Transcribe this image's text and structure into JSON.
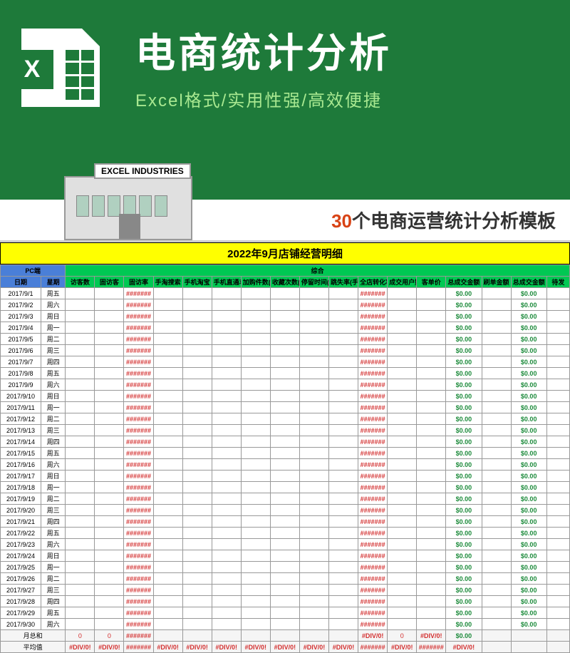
{
  "hero": {
    "icon_letter": "X",
    "title": "电商统计分析",
    "subtitle": "Excel格式/实用性强/高效便捷"
  },
  "building_sign": "EXCEL INDUSTRIES",
  "banner": {
    "num": "30",
    "text": "个电商运营统计分析模板"
  },
  "sheet_title": "2022年9月店铺经营明细",
  "section_headers": {
    "pc": "PC端",
    "all": "综合"
  },
  "columns": [
    "日期",
    "星期",
    "访客数",
    "固访客",
    "固访率",
    "手淘搜索",
    "手机淘宝",
    "手机直通车",
    "加购件数(手机)",
    "收藏次数(手机)",
    "停留时间(手机)",
    "跳失率(手机)",
    "全店转化率",
    "成交用户数",
    "客单价",
    "总成交金额",
    "刷单金额",
    "总成交金额",
    "待发"
  ],
  "error_hash": "#######",
  "zero_dollar": "$0.00",
  "div_err": "#DIV/0!",
  "rows": [
    {
      "d": "2017/9/1",
      "w": "周五"
    },
    {
      "d": "2017/9/2",
      "w": "周六"
    },
    {
      "d": "2017/9/3",
      "w": "周日"
    },
    {
      "d": "2017/9/4",
      "w": "周一"
    },
    {
      "d": "2017/9/5",
      "w": "周二"
    },
    {
      "d": "2017/9/6",
      "w": "周三"
    },
    {
      "d": "2017/9/7",
      "w": "周四"
    },
    {
      "d": "2017/9/8",
      "w": "周五"
    },
    {
      "d": "2017/9/9",
      "w": "周六"
    },
    {
      "d": "2017/9/10",
      "w": "周日"
    },
    {
      "d": "2017/9/11",
      "w": "周一"
    },
    {
      "d": "2017/9/12",
      "w": "周二"
    },
    {
      "d": "2017/9/13",
      "w": "周三"
    },
    {
      "d": "2017/9/14",
      "w": "周四"
    },
    {
      "d": "2017/9/15",
      "w": "周五"
    },
    {
      "d": "2017/9/16",
      "w": "周六"
    },
    {
      "d": "2017/9/17",
      "w": "周日"
    },
    {
      "d": "2017/9/18",
      "w": "周一"
    },
    {
      "d": "2017/9/19",
      "w": "周二"
    },
    {
      "d": "2017/9/20",
      "w": "周三"
    },
    {
      "d": "2017/9/21",
      "w": "周四"
    },
    {
      "d": "2017/9/22",
      "w": "周五"
    },
    {
      "d": "2017/9/23",
      "w": "周六"
    },
    {
      "d": "2017/9/24",
      "w": "周日"
    },
    {
      "d": "2017/9/25",
      "w": "周一"
    },
    {
      "d": "2017/9/26",
      "w": "周二"
    },
    {
      "d": "2017/9/27",
      "w": "周三"
    },
    {
      "d": "2017/9/28",
      "w": "周四"
    },
    {
      "d": "2017/9/29",
      "w": "周五"
    },
    {
      "d": "2017/9/30",
      "w": "周六"
    }
  ],
  "summary": {
    "total_label": "月总和",
    "avg_label": "平均值",
    "zero": "0"
  },
  "colors": {
    "hero_bg": "#1e7a3a",
    "hero_sub": "#a8e890",
    "banner_num": "#d84315",
    "title_bg": "#ffff00",
    "hdr_blue": "#4a7fd8",
    "hdr_green": "#00c853",
    "err": "#d32f2f",
    "val": "#1b8a3a"
  }
}
